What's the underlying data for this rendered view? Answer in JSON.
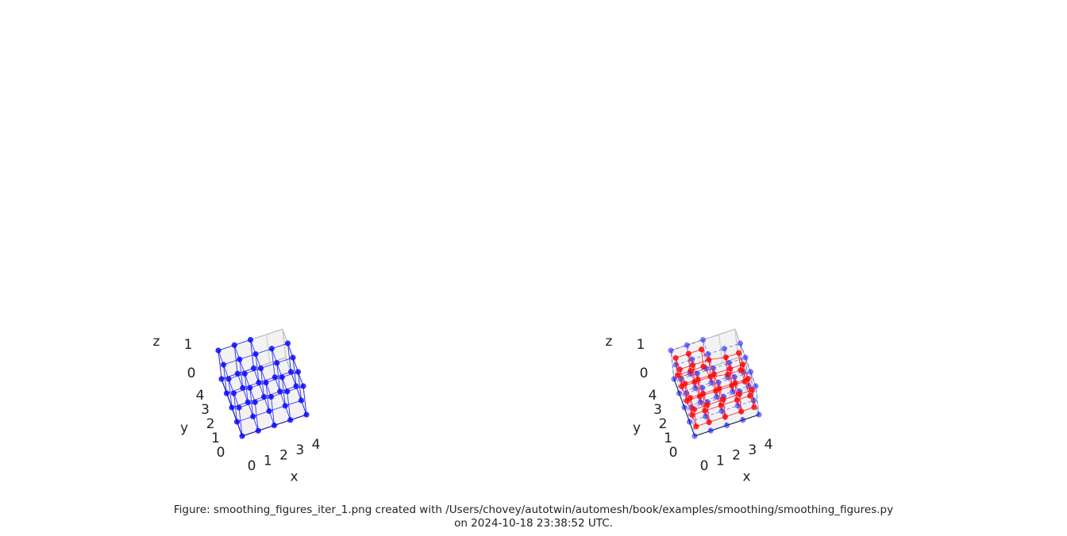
{
  "chart_data": [
    {
      "type": "mesh3d",
      "xlabel": "x",
      "ylabel": "y",
      "zlabel": "z",
      "xlim": [
        0,
        4
      ],
      "ylim": [
        0,
        4
      ],
      "zlim": [
        0,
        1
      ],
      "xticks": [
        0,
        1,
        2,
        3,
        4
      ],
      "yticks": [
        0,
        1,
        2,
        3,
        4
      ],
      "zticks": [
        0,
        1
      ],
      "series": [
        {
          "color": "#0000ff",
          "opacity": 0.8,
          "dashed": false,
          "nodes": [
            [
              0,
              0,
              0
            ],
            [
              1,
              0,
              0
            ],
            [
              2,
              0,
              0
            ],
            [
              3,
              0,
              0
            ],
            [
              4,
              0,
              0
            ],
            [
              0,
              1,
              0
            ],
            [
              1,
              1,
              0
            ],
            [
              2,
              1,
              0
            ],
            [
              3,
              1,
              0
            ],
            [
              4,
              1,
              0
            ],
            [
              0,
              2,
              0
            ],
            [
              1,
              2,
              0
            ],
            [
              2,
              2,
              0
            ],
            [
              3,
              2,
              0
            ],
            [
              4,
              2,
              0
            ],
            [
              0,
              3,
              0
            ],
            [
              1,
              3,
              0
            ],
            [
              2,
              3,
              0
            ],
            [
              3,
              3,
              0
            ],
            [
              4,
              3,
              0
            ],
            [
              0,
              4,
              0
            ],
            [
              1,
              4,
              0
            ],
            [
              2,
              4,
              0
            ],
            [
              0,
              0,
              1
            ],
            [
              1,
              0,
              1
            ],
            [
              2,
              0,
              1
            ],
            [
              3,
              0,
              1
            ],
            [
              4,
              0,
              1
            ],
            [
              0,
              1,
              1
            ],
            [
              1,
              1,
              1
            ],
            [
              2,
              1,
              1
            ],
            [
              3,
              1,
              1
            ],
            [
              4,
              1,
              1
            ],
            [
              0,
              2,
              1
            ],
            [
              1,
              2,
              1
            ],
            [
              2,
              2,
              1
            ],
            [
              3,
              2,
              1
            ],
            [
              4,
              2,
              1
            ],
            [
              0,
              3,
              1
            ],
            [
              1,
              3,
              1
            ],
            [
              2,
              3,
              1
            ],
            [
              3,
              3,
              1
            ],
            [
              4,
              3,
              1
            ],
            [
              0,
              4,
              1
            ],
            [
              1,
              4,
              1
            ],
            [
              2,
              4,
              1
            ]
          ]
        }
      ]
    },
    {
      "type": "mesh3d",
      "xlabel": "x",
      "ylabel": "y",
      "zlabel": "z",
      "xlim": [
        0,
        4
      ],
      "ylim": [
        0,
        4
      ],
      "zlim": [
        0,
        1
      ],
      "xticks": [
        0,
        1,
        2,
        3,
        4
      ],
      "yticks": [
        0,
        1,
        2,
        3,
        4
      ],
      "zticks": [
        0,
        1
      ],
      "series": [
        {
          "color": "#0000ff",
          "opacity": 0.5,
          "dashed": true,
          "nodes": [
            [
              0,
              0,
              0
            ],
            [
              1,
              0,
              0
            ],
            [
              2,
              0,
              0
            ],
            [
              3,
              0,
              0
            ],
            [
              4,
              0,
              0
            ],
            [
              0,
              1,
              0
            ],
            [
              1,
              1,
              0
            ],
            [
              2,
              1,
              0
            ],
            [
              3,
              1,
              0
            ],
            [
              4,
              1,
              0
            ],
            [
              0,
              2,
              0
            ],
            [
              1,
              2,
              0
            ],
            [
              2,
              2,
              0
            ],
            [
              3,
              2,
              0
            ],
            [
              4,
              2,
              0
            ],
            [
              0,
              3,
              0
            ],
            [
              1,
              3,
              0
            ],
            [
              2,
              3,
              0
            ],
            [
              3,
              3,
              0
            ],
            [
              4,
              3,
              0
            ],
            [
              0,
              4,
              0
            ],
            [
              1,
              4,
              0
            ],
            [
              2,
              4,
              0
            ],
            [
              0,
              0,
              1
            ],
            [
              1,
              0,
              1
            ],
            [
              2,
              0,
              1
            ],
            [
              3,
              0,
              1
            ],
            [
              4,
              0,
              1
            ],
            [
              0,
              1,
              1
            ],
            [
              1,
              1,
              1
            ],
            [
              2,
              1,
              1
            ],
            [
              3,
              1,
              1
            ],
            [
              4,
              1,
              1
            ],
            [
              0,
              2,
              1
            ],
            [
              1,
              2,
              1
            ],
            [
              2,
              2,
              1
            ],
            [
              3,
              2,
              1
            ],
            [
              4,
              2,
              1
            ],
            [
              0,
              3,
              1
            ],
            [
              1,
              3,
              1
            ],
            [
              2,
              3,
              1
            ],
            [
              3,
              3,
              1
            ],
            [
              4,
              3,
              1
            ],
            [
              0,
              4,
              1
            ],
            [
              1,
              4,
              1
            ],
            [
              2,
              4,
              1
            ]
          ]
        },
        {
          "color": "#ff0000",
          "opacity": 0.8,
          "dashed": false,
          "nodes": [
            [
              0.2,
              0.2,
              0.2
            ],
            [
              1,
              0.2,
              0.2
            ],
            [
              2,
              0.2,
              0.2
            ],
            [
              3,
              0.2,
              0.2
            ],
            [
              3.8,
              0.2,
              0.2
            ],
            [
              0.2,
              1,
              0.2
            ],
            [
              1,
              1,
              0.2
            ],
            [
              2,
              1,
              0.2
            ],
            [
              3,
              1,
              0.2
            ],
            [
              3.8,
              1,
              0.2
            ],
            [
              0.2,
              2,
              0.2
            ],
            [
              1,
              2,
              0.2
            ],
            [
              2,
              2,
              0.2
            ],
            [
              3,
              2,
              0.2
            ],
            [
              3.8,
              2,
              0.2
            ],
            [
              0.2,
              3,
              0.2
            ],
            [
              1,
              3,
              0.2
            ],
            [
              2,
              3,
              0.2
            ],
            [
              3,
              2.8,
              0.2
            ],
            [
              3.8,
              2.8,
              0.2
            ],
            [
              0.2,
              3.8,
              0.2
            ],
            [
              1,
              3.8,
              0.2
            ],
            [
              1.8,
              3.8,
              0.2
            ],
            [
              0.2,
              0.2,
              0.8
            ],
            [
              1,
              0.2,
              0.8
            ],
            [
              2,
              0.2,
              0.8
            ],
            [
              3,
              0.2,
              0.8
            ],
            [
              3.8,
              0.2,
              0.8
            ],
            [
              0.2,
              1,
              0.8
            ],
            [
              1,
              1,
              0.8
            ],
            [
              2,
              1,
              0.8
            ],
            [
              3,
              1,
              0.8
            ],
            [
              3.8,
              1,
              0.8
            ],
            [
              0.2,
              2,
              0.8
            ],
            [
              1,
              2,
              0.8
            ],
            [
              2,
              2,
              0.8
            ],
            [
              3,
              2,
              0.8
            ],
            [
              3.8,
              2,
              0.8
            ],
            [
              0.2,
              3,
              0.8
            ],
            [
              1,
              3,
              0.8
            ],
            [
              2,
              3,
              0.8
            ],
            [
              3,
              2.8,
              0.8
            ],
            [
              3.8,
              2.8,
              0.8
            ],
            [
              0.2,
              3.8,
              0.8
            ],
            [
              1,
              3.8,
              0.8
            ],
            [
              1.8,
              3.8,
              0.8
            ]
          ]
        }
      ]
    }
  ],
  "caption": [
    "Figure: smoothing_figures_iter_1.png created with /Users/chovey/autotwin/automesh/book/examples/smoothing/smoothing_figures.py",
    "on 2024-10-18 23:38:52 UTC."
  ]
}
